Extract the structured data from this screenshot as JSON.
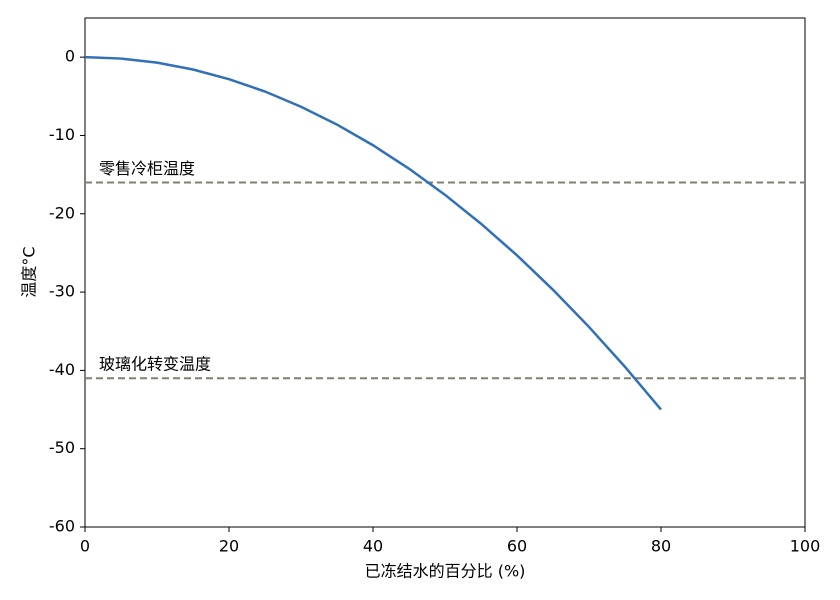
{
  "chart_data": {
    "type": "line",
    "xlabel": "已冻结水的百分比 (%)",
    "ylabel": "温度°C",
    "x": [
      0,
      5,
      10,
      15,
      20,
      25,
      30,
      35,
      40,
      45,
      50,
      55,
      60,
      65,
      70,
      75,
      80
    ],
    "series": [
      {
        "name": "温度",
        "color": "#3070b8",
        "values": [
          0,
          -0.18,
          -0.7,
          -1.58,
          -2.81,
          -4.39,
          -6.33,
          -8.61,
          -11.25,
          -14.24,
          -17.58,
          -21.27,
          -25.31,
          -29.71,
          -34.45,
          -39.55,
          -45
        ]
      }
    ],
    "reference_lines": [
      {
        "value": -16,
        "label": "零售冷柜温度"
      },
      {
        "value": -41,
        "label": "玻璃化转变温度"
      }
    ],
    "reference_color": "#808070",
    "xlim": [
      0,
      100
    ],
    "xticks": [
      0,
      20,
      40,
      60,
      80,
      100
    ],
    "ylim": [
      -60,
      5
    ],
    "yticks": [
      0,
      -10,
      -20,
      -30,
      -40,
      -50,
      -60
    ],
    "grid": false
  }
}
